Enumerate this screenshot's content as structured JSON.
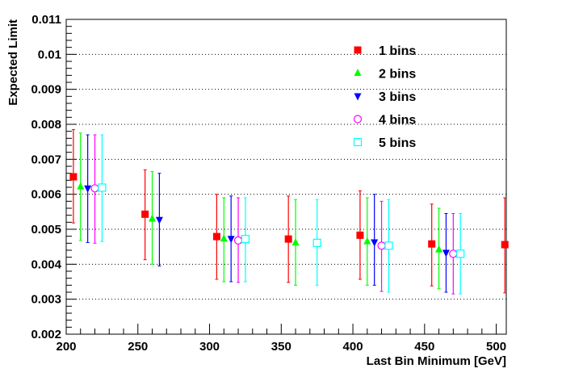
{
  "chart_data": {
    "type": "scatter",
    "xlabel": "Last Bin Minimum [GeV]",
    "ylabel": "Expected Limit",
    "xlim": [
      200,
      507
    ],
    "ylim": [
      0.002,
      0.011
    ],
    "xticks": [
      200,
      250,
      300,
      350,
      400,
      450,
      500
    ],
    "xtick_labels": [
      "200",
      "250",
      "300",
      "350",
      "400",
      "450",
      "500"
    ],
    "yticks": [
      0.002,
      0.003,
      0.004,
      0.005,
      0.006,
      0.007,
      0.008,
      0.009,
      0.01,
      0.011
    ],
    "ytick_labels": [
      "0.002",
      "0.003",
      "0.004",
      "0.005",
      "0.006",
      "0.007",
      "0.008",
      "0.009",
      "0.01",
      "0.011"
    ],
    "grid": "horizontal dotted",
    "legend_position": "top-right",
    "series": [
      {
        "name": "1 bins",
        "color": "#ff0000",
        "marker": "square-filled",
        "points": [
          {
            "x": 205,
            "y": 0.0065,
            "lo": 0.00518,
            "hi": 0.00785
          },
          {
            "x": 255,
            "y": 0.00543,
            "lo": 0.00413,
            "hi": 0.0067
          },
          {
            "x": 305,
            "y": 0.00479,
            "lo": 0.00357,
            "hi": 0.006
          },
          {
            "x": 355,
            "y": 0.00472,
            "lo": 0.00348,
            "hi": 0.00595
          },
          {
            "x": 405,
            "y": 0.00483,
            "lo": 0.00357,
            "hi": 0.0061
          },
          {
            "x": 455,
            "y": 0.00458,
            "lo": 0.00338,
            "hi": 0.00572
          },
          {
            "x": 506,
            "y": 0.00456,
            "lo": 0.00318,
            "hi": 0.0059
          }
        ]
      },
      {
        "name": "2 bins",
        "color": "#00ff00",
        "marker": "triangle-up-filled",
        "points": [
          {
            "x": 210,
            "y": 0.00622,
            "lo": 0.00468,
            "hi": 0.00775
          },
          {
            "x": 260,
            "y": 0.0053,
            "lo": 0.004,
            "hi": 0.00665
          },
          {
            "x": 310,
            "y": 0.00473,
            "lo": 0.0035,
            "hi": 0.0059
          },
          {
            "x": 360,
            "y": 0.00462,
            "lo": 0.0034,
            "hi": 0.00585
          },
          {
            "x": 410,
            "y": 0.00465,
            "lo": 0.0034,
            "hi": 0.0059
          },
          {
            "x": 460,
            "y": 0.00442,
            "lo": 0.0033,
            "hi": 0.0056
          }
        ]
      },
      {
        "name": "3 bins",
        "color": "#0000ff",
        "marker": "triangle-down-filled",
        "points": [
          {
            "x": 215,
            "y": 0.00617,
            "lo": 0.00462,
            "hi": 0.0077
          },
          {
            "x": 265,
            "y": 0.00527,
            "lo": 0.00395,
            "hi": 0.0066
          },
          {
            "x": 315,
            "y": 0.00473,
            "lo": 0.0035,
            "hi": 0.00595
          },
          {
            "x": 415,
            "y": 0.00463,
            "lo": 0.0034,
            "hi": 0.006
          },
          {
            "x": 465,
            "y": 0.00433,
            "lo": 0.0032,
            "hi": 0.00545
          }
        ]
      },
      {
        "name": "4 bins",
        "color": "#ff00ff",
        "marker": "circle-open",
        "points": [
          {
            "x": 220,
            "y": 0.00617,
            "lo": 0.0046,
            "hi": 0.0077
          },
          {
            "x": 320,
            "y": 0.00468,
            "lo": 0.00348,
            "hi": 0.0059
          },
          {
            "x": 420,
            "y": 0.00453,
            "lo": 0.00322,
            "hi": 0.0058
          },
          {
            "x": 470,
            "y": 0.0043,
            "lo": 0.00315,
            "hi": 0.00545
          }
        ]
      },
      {
        "name": "5 bins",
        "color": "#00ffff",
        "marker": "square-open",
        "points": [
          {
            "x": 225,
            "y": 0.00619,
            "lo": 0.00465,
            "hi": 0.0077
          },
          {
            "x": 325,
            "y": 0.00472,
            "lo": 0.0035,
            "hi": 0.0059
          },
          {
            "x": 375,
            "y": 0.00461,
            "lo": 0.0034,
            "hi": 0.00585
          },
          {
            "x": 425,
            "y": 0.00453,
            "lo": 0.0032,
            "hi": 0.00585
          },
          {
            "x": 475,
            "y": 0.0043,
            "lo": 0.00315,
            "hi": 0.00545
          }
        ]
      }
    ]
  }
}
